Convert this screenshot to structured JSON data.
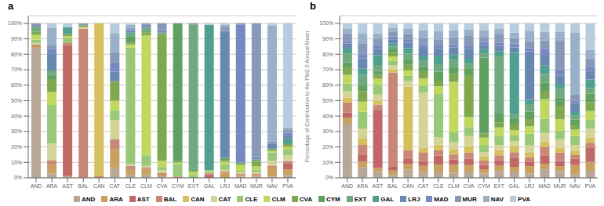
{
  "chart_data": [
    {
      "type": "bar",
      "title": "a",
      "stacked": true,
      "grid": true,
      "categories": [
        "AND",
        "ARA",
        "AST",
        "BAL",
        "CAN",
        "CAT",
        "CLE",
        "CLM",
        "CVA",
        "CYM",
        "EXT",
        "GAL",
        "LRJ",
        "MAD",
        "MUR",
        "NAV",
        "PVA"
      ],
      "ylim": [
        0,
        105
      ],
      "yticks": [
        {
          "value": 0,
          "label": "0%"
        },
        {
          "value": 10,
          "label": "10%"
        },
        {
          "value": 20,
          "label": "20%"
        },
        {
          "value": 30,
          "label": "30%"
        },
        {
          "value": 40,
          "label": "40%"
        },
        {
          "value": 50,
          "label": "50%"
        },
        {
          "value": 60,
          "label": "60%"
        },
        {
          "value": 70,
          "label": "70%"
        },
        {
          "value": 80,
          "label": "80%"
        },
        {
          "value": 90,
          "label": "90%"
        },
        {
          "value": 100,
          "label": "100%"
        }
      ],
      "series": [
        {
          "name": "AND",
          "color": "#b8a898",
          "values": [
            84.21,
            2.78,
            1.16,
            0,
            0,
            6.25,
            1.94,
            1.94,
            1,
            0,
            0,
            0,
            0,
            0.91,
            0.92,
            0.79,
            1.82
          ]
        },
        {
          "name": "ARA",
          "color": "#c8a060",
          "values": [
            1.05,
            5.56,
            0,
            0,
            0,
            12.5,
            3.88,
            3.88,
            1,
            0,
            0,
            0,
            3.48,
            0.91,
            0.92,
            6.3,
            3.64
          ]
        },
        {
          "name": "AST",
          "color": "#c06868",
          "values": [
            0,
            0,
            84.88,
            0,
            0,
            0,
            0.97,
            0,
            0,
            0,
            0,
            1.92,
            0,
            0,
            0,
            0,
            3.64
          ]
        },
        {
          "name": "BAL",
          "color": "#c88878",
          "values": [
            1.05,
            2.78,
            1.16,
            96.51,
            1.01,
            6.25,
            0.97,
            0.97,
            1,
            0.9,
            0,
            0.96,
            0.87,
            0.91,
            0.92,
            0.79,
            1.82
          ]
        },
        {
          "name": "CAN",
          "color": "#d4c060",
          "values": [
            0,
            0,
            0,
            0,
            98.99,
            0,
            0,
            0,
            0,
            0,
            0,
            0,
            0,
            0,
            0,
            0,
            0
          ]
        },
        {
          "name": "CAT",
          "color": "#d4d498",
          "values": [
            1.05,
            11.11,
            0,
            1.16,
            0,
            12.5,
            0.97,
            0.97,
            2,
            0,
            0,
            0,
            0.87,
            0.91,
            0.92,
            3.15,
            3.64
          ]
        },
        {
          "name": "CLE",
          "color": "#98c878",
          "values": [
            2.11,
            25,
            3.49,
            0,
            0,
            6.25,
            75.73,
            6.8,
            2,
            8.11,
            1.89,
            0.96,
            3.48,
            0.91,
            1.83,
            5.51,
            3.64
          ]
        },
        {
          "name": "CLM",
          "color": "#c0d860",
          "values": [
            3.16,
            8.33,
            1.16,
            0,
            0,
            6.25,
            1.94,
            77.67,
            4,
            0.9,
            1.89,
            0.96,
            1.74,
            3.64,
            1.83,
            0.79,
            1.82
          ]
        },
        {
          "name": "CVA",
          "color": "#80a850",
          "values": [
            2.11,
            8.33,
            1.16,
            1.16,
            0,
            12.5,
            0.97,
            1.94,
            82,
            0.9,
            0.94,
            0,
            0.87,
            0.91,
            3.67,
            0.79,
            1.82
          ]
        },
        {
          "name": "CYM",
          "color": "#60a060",
          "values": [
            0,
            2.78,
            0,
            0,
            0,
            0,
            3.88,
            0.97,
            0,
            89.19,
            0.94,
            0,
            0.87,
            0,
            0,
            0.79,
            0
          ]
        },
        {
          "name": "EXT",
          "color": "#70a880",
          "values": [
            3.16,
            2.78,
            0,
            0,
            0,
            0,
            1.94,
            1.94,
            1,
            0,
            93.4,
            0,
            0.87,
            0.91,
            0.92,
            0,
            0
          ]
        },
        {
          "name": "GAL",
          "color": "#50a090",
          "values": [
            0,
            0,
            4.65,
            0,
            0,
            0,
            0.97,
            0,
            0,
            0,
            0,
            94.23,
            0,
            0,
            0,
            0,
            3.64
          ]
        },
        {
          "name": "LRJ",
          "color": "#6888b0",
          "values": [
            0,
            11.11,
            0,
            0,
            0,
            6.25,
            0.97,
            0.97,
            1,
            0,
            0,
            0,
            81.74,
            0,
            0.92,
            3.15,
            1.82
          ]
        },
        {
          "name": "MAD",
          "color": "#7888c0",
          "values": [
            0,
            2.78,
            0,
            0,
            0,
            6.25,
            0.97,
            0.97,
            1,
            0,
            0,
            0,
            0.87,
            89.09,
            0.92,
            0.79,
            1.82
          ]
        },
        {
          "name": "MUR",
          "color": "#8898b8",
          "values": [
            2.11,
            2.78,
            0,
            1.16,
            0,
            6.25,
            0.97,
            0.97,
            4,
            0,
            0.94,
            0,
            1.74,
            0.91,
            86.24,
            0.79,
            1.82
          ]
        },
        {
          "name": "NAV",
          "color": "#98b0c8",
          "values": [
            0,
            11.11,
            0,
            0,
            0,
            12.5,
            1.94,
            0,
            0,
            0,
            0,
            0,
            1.74,
            0,
            0,
            74.8,
            1.82
          ]
        },
        {
          "name": "PVA",
          "color": "#b8cce0",
          "values": [
            0,
            2.78,
            2.33,
            0,
            0,
            6.25,
            0.97,
            0,
            0,
            0,
            0,
            0.96,
            0.87,
            0,
            0,
            1.57,
            67.27
          ]
        }
      ]
    },
    {
      "type": "bar",
      "title": "b",
      "stacked": true,
      "grid": true,
      "legend": "bottom",
      "y_label": "Percentage of Contribution to the PM2.5 Annual Mean",
      "categories": [
        "AND",
        "ARA",
        "AST",
        "BAL",
        "CAN",
        "CAT",
        "CLE",
        "CLM",
        "CVA",
        "CYM",
        "EXT",
        "GAL",
        "LRJ",
        "MAD",
        "MUR",
        "NAV",
        "PVA"
      ],
      "ylim": [
        0,
        105
      ],
      "yticks": [
        {
          "value": 0,
          "label": "0%"
        },
        {
          "value": 10,
          "label": "10%"
        },
        {
          "value": 20,
          "label": "20%"
        },
        {
          "value": 30,
          "label": "30%"
        },
        {
          "value": 40,
          "label": "40%"
        },
        {
          "value": 50,
          "label": "50%"
        },
        {
          "value": 60,
          "label": "60%"
        },
        {
          "value": 70,
          "label": "70%"
        },
        {
          "value": 80,
          "label": "80%"
        },
        {
          "value": 90,
          "label": "90%"
        },
        {
          "value": 100,
          "label": "100%"
        }
      ],
      "series": [
        {
          "name": "AND",
          "color": "#b8a898",
          "values": [
            34.96,
            6.67,
            3.85,
            1.87,
            5.36,
            3.88,
            3.57,
            3.27,
            4.1,
            2.78,
            4.49,
            3.57,
            2.86,
            5.45,
            4.35,
            2.46,
            4.55
          ]
        },
        {
          "name": "ARA",
          "color": "#c8a060",
          "values": [
            4.07,
            4,
            2.56,
            2.8,
            3.57,
            3.88,
            5,
            5.23,
            4.1,
            2.78,
            3.37,
            3.57,
            4.76,
            3.64,
            3.26,
            5.74,
            5.68
          ]
        },
        {
          "name": "AST",
          "color": "#c06868",
          "values": [
            3.25,
            4,
            37.18,
            2.8,
            3.57,
            3.1,
            5.71,
            3.27,
            4.1,
            2.78,
            3.37,
            5.95,
            2.86,
            5.45,
            3.26,
            4.1,
            9.09
          ]
        },
        {
          "name": "BAL",
          "color": "#c88878",
          "values": [
            6.5,
            6.67,
            3.85,
            60.75,
            5.36,
            5.43,
            3.57,
            3.27,
            4.1,
            2.78,
            3.37,
            3.57,
            2.86,
            5.45,
            5.43,
            2.46,
            3.41
          ]
        },
        {
          "name": "CAN",
          "color": "#d4c060",
          "values": [
            3.25,
            4,
            2.56,
            1.87,
            41.07,
            3.1,
            3.57,
            3.27,
            4.1,
            2.78,
            3.37,
            3.57,
            2.86,
            3.64,
            3.26,
            2.46,
            3.41
          ]
        },
        {
          "name": "CAT",
          "color": "#d4d498",
          "values": [
            4.07,
            6.67,
            3.85,
            2.8,
            3.57,
            35.66,
            5,
            4.58,
            6.56,
            2.78,
            3.37,
            3.57,
            4.76,
            5.45,
            5.43,
            4.1,
            5.68
          ]
        },
        {
          "name": "CLE",
          "color": "#98c878",
          "values": [
            4.88,
            10.67,
            6.41,
            2.8,
            3.57,
            4.65,
            27.86,
            6.54,
            5.74,
            4.63,
            5.62,
            3.57,
            7.62,
            9.09,
            5.43,
            5.74,
            5.68
          ]
        },
        {
          "name": "CLM",
          "color": "#c0d860",
          "values": [
            5.69,
            6.67,
            3.85,
            2.8,
            3.57,
            4.65,
            5,
            32.68,
            6.56,
            4.63,
            5.62,
            3.57,
            4.76,
            12.73,
            7.61,
            4.1,
            5.68
          ]
        },
        {
          "name": "CVA",
          "color": "#80a850",
          "values": [
            4.88,
            6.67,
            2.56,
            2.8,
            3.57,
            4.65,
            3.57,
            5.23,
            27.05,
            2.78,
            3.37,
            3.57,
            4.76,
            5.45,
            8.7,
            2.46,
            5.68
          ]
        },
        {
          "name": "CYM",
          "color": "#60a060",
          "values": [
            3.25,
            4,
            2.56,
            1.87,
            3.57,
            3.1,
            5.71,
            4.58,
            4.1,
            49.07,
            5.62,
            3.57,
            4.76,
            5.45,
            5.43,
            4.1,
            5.68
          ]
        },
        {
          "name": "EXT",
          "color": "#70a880",
          "values": [
            5.69,
            6.67,
            3.85,
            1.87,
            3.57,
            3.88,
            5,
            4.58,
            4.1,
            2.78,
            37.08,
            3.57,
            4.76,
            5.45,
            5.43,
            2.46,
            3.41
          ]
        },
        {
          "name": "GAL",
          "color": "#50a090",
          "values": [
            3.25,
            4,
            6.41,
            1.87,
            3.57,
            3.1,
            5,
            3.27,
            2.46,
            2.78,
            3.37,
            39.29,
            2.86,
            5.45,
            3.26,
            2.46,
            5.68
          ]
        },
        {
          "name": "LRJ",
          "color": "#6888b0",
          "values": [
            3.25,
            6.67,
            3.85,
            2.8,
            3.57,
            4.65,
            5,
            4.58,
            6.56,
            2.78,
            3.37,
            3.57,
            31.43,
            5.45,
            5.43,
            5.74,
            5.68
          ]
        },
        {
          "name": "MAD",
          "color": "#7888c0",
          "values": [
            1.63,
            2.67,
            2.56,
            1.87,
            1.79,
            2.33,
            2.14,
            1.96,
            1.64,
            1.85,
            2.25,
            2.38,
            1.9,
            5.45,
            3.26,
            1.64,
            2.27
          ]
        },
        {
          "name": "MUR",
          "color": "#8898b8",
          "values": [
            4.88,
            6.67,
            3.85,
            2.8,
            3.57,
            4.65,
            3.57,
            4.58,
            6.56,
            2.78,
            5.62,
            3.57,
            4.76,
            5.45,
            19.57,
            4.1,
            5.68
          ]
        },
        {
          "name": "NAV",
          "color": "#98b0c8",
          "values": [
            3.25,
            6.67,
            3.85,
            2.8,
            3.57,
            4.65,
            5.71,
            4.58,
            4.1,
            4.63,
            3.37,
            3.57,
            6.67,
            5.45,
            5.43,
            40.16,
            5.68
          ]
        },
        {
          "name": "PVA",
          "color": "#b8cce0",
          "values": [
            3.25,
            6.67,
            6.41,
            2.8,
            3.57,
            4.65,
            5,
            4.58,
            4.1,
            4.63,
            3.37,
            5.95,
            4.76,
            5.45,
            5.43,
            5.74,
            17.05
          ]
        }
      ]
    }
  ]
}
